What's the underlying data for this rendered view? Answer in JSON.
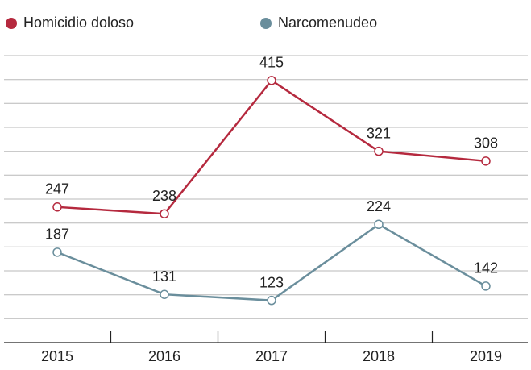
{
  "chart_data": {
    "type": "line",
    "categories": [
      "2015",
      "2016",
      "2017",
      "2018",
      "2019"
    ],
    "series": [
      {
        "name": "Homicidio doloso",
        "color": "#b5293e",
        "values": [
          247,
          238,
          415,
          321,
          308
        ]
      },
      {
        "name": "Narcomenudeo",
        "color": "#6a8e9c",
        "values": [
          187,
          131,
          123,
          224,
          142
        ]
      }
    ],
    "ylim": [
      67,
      448
    ],
    "grid": true,
    "legend": "top-left"
  }
}
